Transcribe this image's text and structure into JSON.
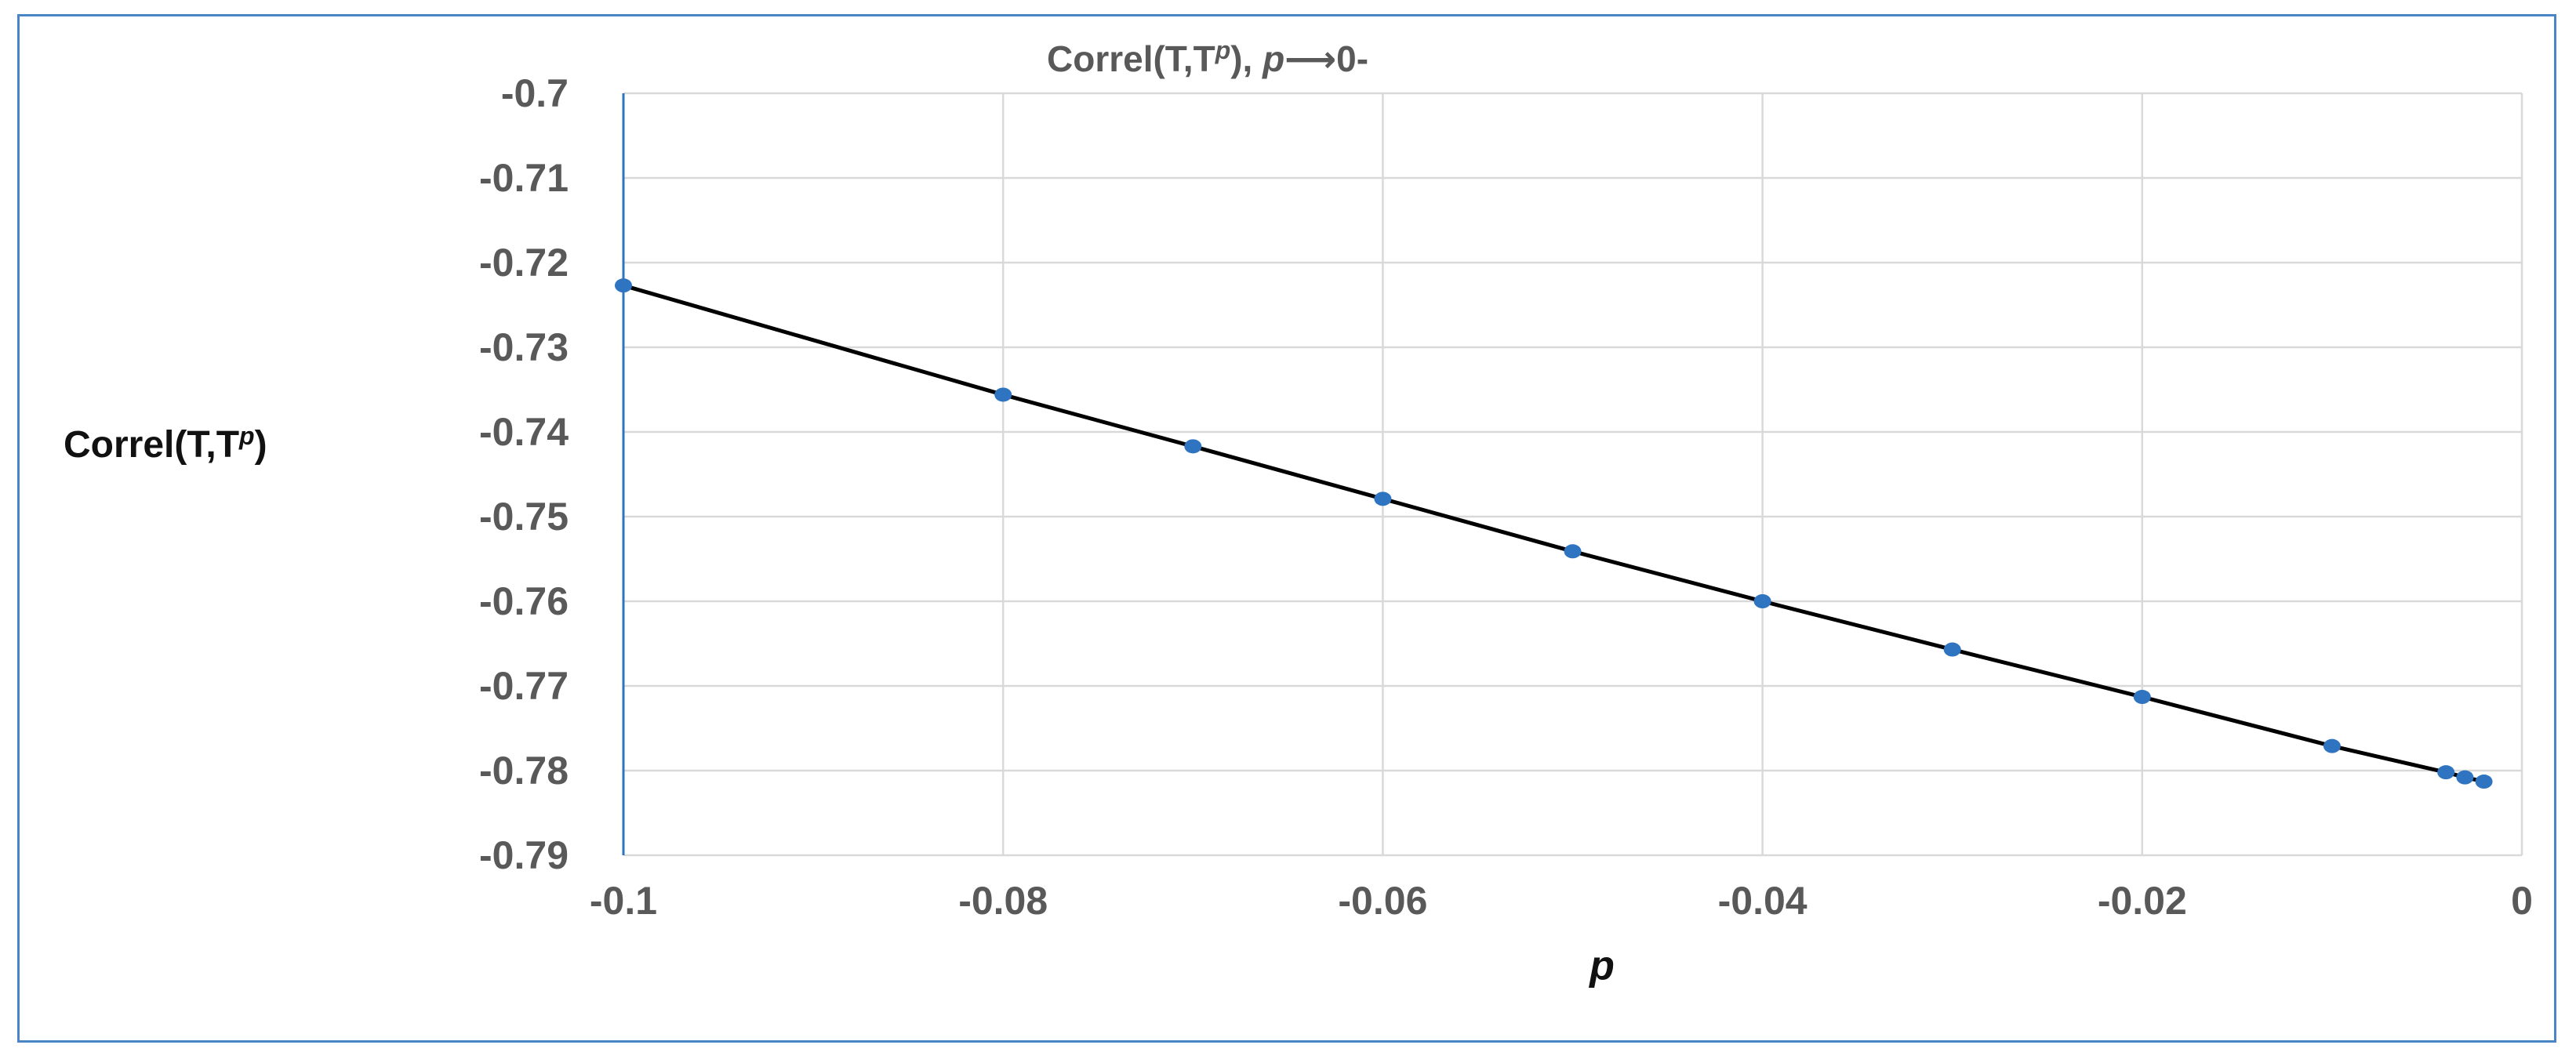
{
  "chart_data": {
    "type": "line",
    "title": {
      "prefix": "Correl(T,T",
      "superscript": "p",
      "middle": "), ",
      "variable": "p",
      "suffix": "⟶0-"
    },
    "xlabel": "p",
    "ylabel": {
      "prefix": "Correl(T,T",
      "superscript": "p",
      "suffix": ")"
    },
    "xlim": [
      -0.1,
      0
    ],
    "ylim": [
      -0.79,
      -0.7
    ],
    "x_ticks": [
      -0.1,
      -0.08,
      -0.06,
      -0.04,
      -0.02,
      0
    ],
    "x_tick_labels": [
      "-0.1",
      "-0.08",
      "-0.06",
      "-0.04",
      "-0.02",
      "0"
    ],
    "x_gridlines": [
      -0.1,
      -0.08,
      -0.06,
      -0.04,
      -0.02,
      0
    ],
    "y_ticks": [
      -0.7,
      -0.71,
      -0.72,
      -0.73,
      -0.74,
      -0.75,
      -0.76,
      -0.77,
      -0.78,
      -0.79
    ],
    "y_tick_labels": [
      "-0.7",
      "-0.71",
      "-0.72",
      "-0.73",
      "-0.74",
      "-0.75",
      "-0.76",
      "-0.77",
      "-0.78",
      "-0.79"
    ],
    "grid": true,
    "legend": "none",
    "series": [
      {
        "x": [
          -0.1,
          -0.08,
          -0.07,
          -0.06,
          -0.05,
          -0.04,
          -0.03,
          -0.02,
          -0.01,
          -0.004,
          -0.003,
          -0.002
        ],
        "y": [
          -0.7227,
          -0.7356,
          -0.7417,
          -0.7479,
          -0.7541,
          -0.76,
          -0.7657,
          -0.7713,
          -0.7771,
          -0.7802,
          -0.7808,
          -0.7813
        ],
        "line_color": "#000000",
        "marker_color": "#2f74c0"
      }
    ],
    "colors": {
      "grid": "#d9d9d9",
      "y_axis": "#2f74c0",
      "tick_text": "#595959",
      "frame": "#4a86c5"
    }
  }
}
